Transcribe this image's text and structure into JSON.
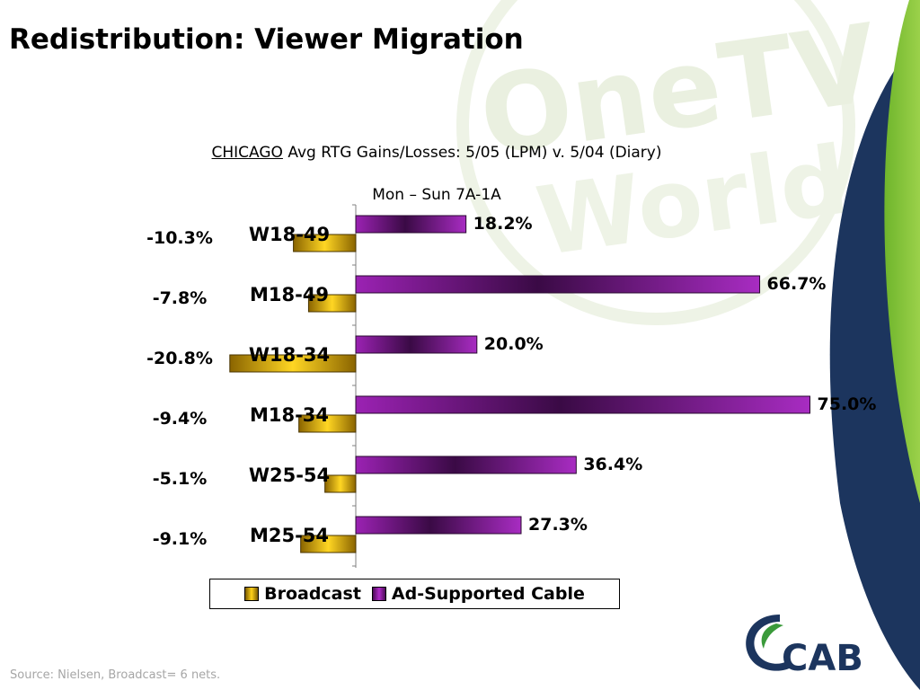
{
  "slide": {
    "title": "Redistribution: Viewer Migration",
    "source_note": "Source:  Nielsen, Broadcast= 6 nets."
  },
  "watermark": {
    "text_line1": "OneTV",
    "text_line2": "World"
  },
  "logo": {
    "text": "CAB",
    "color": "#1f3a6b",
    "accent": "#3a9a3a"
  },
  "colors": {
    "broadcast": "#e6b800",
    "cable": "#8e1ea3",
    "navy": "#1c355e",
    "green": "#8cc63f"
  },
  "chart_data": {
    "type": "bar",
    "orientation": "horizontal",
    "title_city": "CHICAGO",
    "title_rest": " Avg RTG Gains/Losses: 5/05 (LPM) v. 5/04 (Diary)",
    "subtitle": "Mon – Sun 7A-1A",
    "categories": [
      "W18-49",
      "M18-49",
      "W18-34",
      "M18-34",
      "W25-54",
      "M25-54"
    ],
    "series": [
      {
        "name": "Broadcast",
        "values": [
          -10.3,
          -7.8,
          -20.8,
          -9.4,
          -5.1,
          -9.1
        ],
        "labels": [
          "-10.3%",
          "-7.8%",
          "-20.8%",
          "-9.4%",
          "-5.1%",
          "-9.1%"
        ]
      },
      {
        "name": "Ad-Supported Cable",
        "values": [
          18.2,
          66.7,
          20.0,
          75.0,
          36.4,
          27.3
        ],
        "labels": [
          "18.2%",
          "66.7%",
          "20.0%",
          "75.0%",
          "36.4%",
          "27.3%"
        ]
      }
    ],
    "xlim": [
      -21,
      76
    ],
    "grid": false,
    "legend": "bottom"
  }
}
